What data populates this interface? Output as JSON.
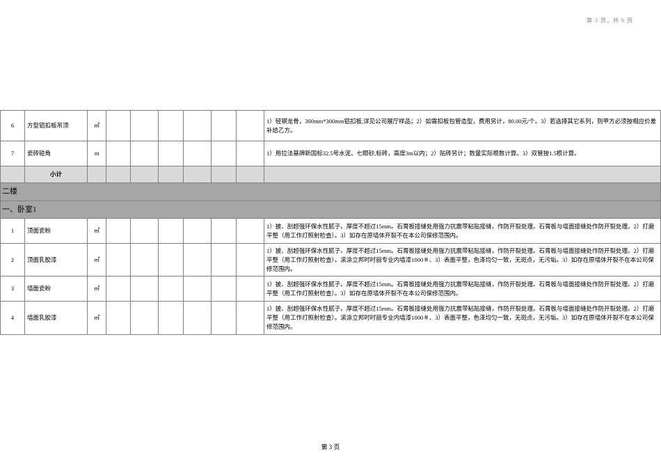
{
  "page_header": "第 3 页，共 9 页",
  "page_footer": "第 3 页",
  "rows": [
    {
      "type": "data",
      "class": "row-tall",
      "idx": "6",
      "item": "方型铝扣板吊顶",
      "unit": "㎡",
      "desc": "1）轻钢龙骨，300mm*300mm铝扣板,详见公司展厅样品；2）如需扣板包管造型，费用另计，80.00元/个。3）若选择其它系列，则甲方必须按相应价差补给乙方。"
    },
    {
      "type": "data",
      "class": "row-med",
      "idx": "7",
      "item": "瓷砖碰角",
      "unit": "m",
      "desc": "1）用拉法基牌新国标32.5号水泥、七眼砂,标砖，高度3m以内；2）贴砖另计；数量实际根数计算。3）双管按1.5根计算。"
    },
    {
      "type": "subtotal",
      "class": "row-sub",
      "label": "小计"
    },
    {
      "type": "section",
      "class": "row-sec",
      "label": "二楼"
    },
    {
      "type": "section",
      "class": "row-sec",
      "label": "一、卧室1"
    },
    {
      "type": "data",
      "class": "row-med",
      "idx": "1",
      "item": "顶面瓷粉",
      "unit": "㎡",
      "desc": "1）披、刮超强环保水性腻子。厚度不超过15mm。石膏板接缝处用强力抗震带粘贴接缝，作防开裂处理。石膏板与墙面接缝处作防开裂处理。2）打磨平整（用工作灯照射检查）。3）如存在原墙体开裂不在本公司保修范围内。"
    },
    {
      "type": "data",
      "class": "row-tall",
      "idx": "2",
      "item": "顶面乳胶漆",
      "unit": "㎡",
      "desc": "1）披、刮超强环保水性腻子。厚度不超过15mm。石膏板接缝处用强力抗震带粘贴接缝，作防开裂处理。石膏板与墙面接缝处作防开裂处理。2）打磨平整（用工作灯照射检查）。滚涂立邦时时丽专业内墙漆1000＃、3）表面平整，色泽均匀一致，无斑点，无污垢。3）如存在原墙体开裂不在本公司保修范围内。"
    },
    {
      "type": "data",
      "class": "row-med",
      "idx": "3",
      "item": "墙面瓷粉",
      "unit": "㎡",
      "desc": "1）披、刮超强环保水性腻子。厚度不超过15mm。石膏板接缝处用强力抗震带粘贴接缝，作防开裂处理。石膏板与墙面接缝处作防开裂处理。2）打磨平整（用工作灯照射检查）。3）如存在原墙体开裂不在本公司保修范围内。"
    },
    {
      "type": "data",
      "class": "row-tall",
      "idx": "4",
      "item": "墙面乳胶漆",
      "unit": "㎡",
      "desc": "1）披、刮超强环保水性腻子。厚度不超过15mm。石膏板接缝处用强力抗震带粘贴接缝，作防开裂处理。石膏板与墙面接缝处作防开裂处理。2）打磨平整（用工作灯照射检查）。滚涂立邦时时丽专业内墙漆1000＃、3）表面平整，色泽均匀一致，无斑点，无污垢。3）如存在原墙体开裂不在本公司保修范围内。"
    }
  ]
}
